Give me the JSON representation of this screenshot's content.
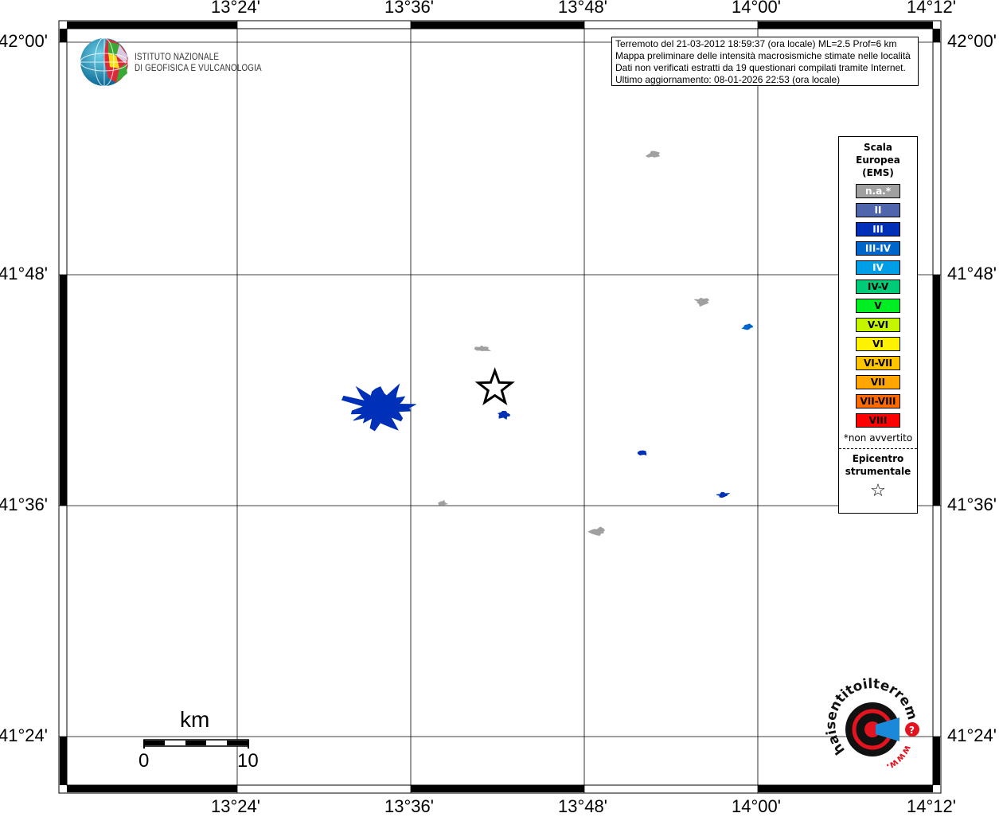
{
  "map": {
    "lon_ticks": [
      "13°24'",
      "13°36'",
      "13°48'",
      "14°00'",
      "14°12'"
    ],
    "lat_ticks": [
      "42°00'",
      "41°48'",
      "41°36'",
      "41°24'"
    ],
    "info_lines": [
      "Terremoto del 21-03-2012 18:59:37 (ora locale) ML=2.5 Prof=6 km",
      "Mappa preliminare delle intensità macrosismiche stimate nelle località",
      "Dati non verificati estratti da 19 questionari compilati tramite Internet.",
      "Ultimo aggiornamento: 08-01-2026 22:53 (ora locale)"
    ],
    "epicenter": {
      "lon": 13.697,
      "lat": 41.701
    },
    "localities": [
      {
        "lon": 13.565,
        "lat": 41.684,
        "class": "III"
      },
      {
        "lon": 13.708,
        "lat": 41.678,
        "class": "III"
      },
      {
        "lon": 13.989,
        "lat": 41.754,
        "class": "III-IV"
      },
      {
        "lon": 13.868,
        "lat": 41.645,
        "class": "III"
      },
      {
        "lon": 13.96,
        "lat": 41.609,
        "class": "III"
      },
      {
        "lon": 13.879,
        "lat": 41.903,
        "class": "n.a.*"
      },
      {
        "lon": 13.683,
        "lat": 41.735,
        "class": "n.a.*"
      },
      {
        "lon": 13.936,
        "lat": 41.776,
        "class": "n.a.*"
      },
      {
        "lon": 13.637,
        "lat": 41.602,
        "class": "n.a.*"
      },
      {
        "lon": 13.816,
        "lat": 41.577,
        "class": "n.a.*"
      }
    ],
    "scale_bar": {
      "unit": "km",
      "start": "0",
      "end": "10"
    }
  },
  "logo_ingv": {
    "line1": "ISTITUTO NAZIONALE",
    "line2": "DI GEOFISICA E VULCANOLOGIA"
  },
  "logo_hst": {
    "text": "haisentitoilterremoto.it",
    "prefix": "www."
  },
  "legend": {
    "title": [
      "Scala",
      "Europea",
      "(EMS)"
    ],
    "items": [
      {
        "label": "n.a.*",
        "color": "#a0a0a0",
        "text": "#ffffff"
      },
      {
        "label": "II",
        "color": "#4f66ad",
        "text": "#ffffff"
      },
      {
        "label": "III",
        "color": "#0030b8",
        "text": "#ffffff"
      },
      {
        "label": "III-IV",
        "color": "#0066cc",
        "text": "#ffffff"
      },
      {
        "label": "IV",
        "color": "#009ee6",
        "text": "#ffffff"
      },
      {
        "label": "IV-V",
        "color": "#00cc77",
        "text": "#000000"
      },
      {
        "label": "V",
        "color": "#00ee22",
        "text": "#000000"
      },
      {
        "label": "V-VI",
        "color": "#c6f500",
        "text": "#000000"
      },
      {
        "label": "VI",
        "color": "#fff200",
        "text": "#000000"
      },
      {
        "label": "VI-VII",
        "color": "#ffc400",
        "text": "#000000"
      },
      {
        "label": "VII",
        "color": "#ffa600",
        "text": "#000000"
      },
      {
        "label": "VII-VIII",
        "color": "#ff6a00",
        "text": "#000000"
      },
      {
        "label": "VIII",
        "color": "#ff0000",
        "text": "#000000"
      }
    ],
    "note": "*non avvertito",
    "epicenter_label": [
      "Epicentro",
      "strumentale"
    ],
    "epicenter_symbol": "☆"
  }
}
